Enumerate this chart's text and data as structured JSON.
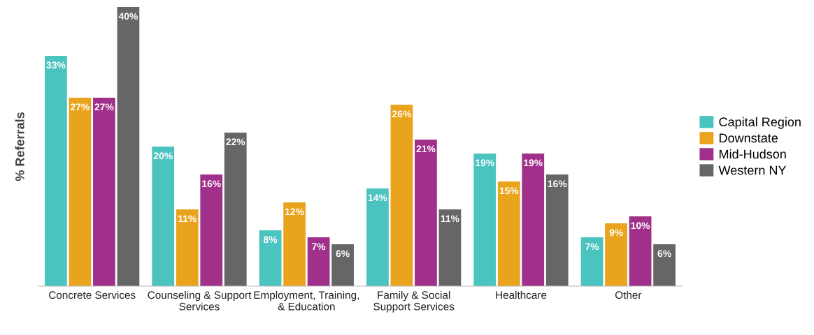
{
  "chart_data": {
    "type": "bar",
    "ylabel": "% Referrals",
    "data_labels": true,
    "legend": "right",
    "categories": [
      "Concrete Services",
      "Counseling & Support\nServices",
      "Employment, Training,\n& Education",
      "Family & Social\nSupport Services",
      "Healthcare",
      "Other"
    ],
    "series": [
      {
        "name": "Capital Region",
        "color": "#4bc4c0",
        "values": [
          33,
          20,
          8,
          14,
          19,
          7
        ],
        "value_labels": [
          "33%",
          "20%",
          "8%",
          "14%",
          "19%",
          "7%"
        ]
      },
      {
        "name": "Downstate",
        "color": "#e9a31c",
        "values": [
          27,
          11,
          12,
          26,
          15,
          9
        ],
        "value_labels": [
          "27%",
          "11%",
          "12%",
          "26%",
          "15%",
          "9%"
        ]
      },
      {
        "name": "Mid-Hudson",
        "color": "#a0308a",
        "values": [
          27,
          16,
          7,
          21,
          19,
          10
        ],
        "value_labels": [
          "27%",
          "16%",
          "7%",
          "21%",
          "19%",
          "10%"
        ]
      },
      {
        "name": "Western NY",
        "color": "#666666",
        "values": [
          40,
          22,
          6,
          11,
          16,
          6
        ],
        "value_labels": [
          "40%",
          "22%",
          "6%",
          "11%",
          "16%",
          "6%"
        ]
      }
    ]
  }
}
